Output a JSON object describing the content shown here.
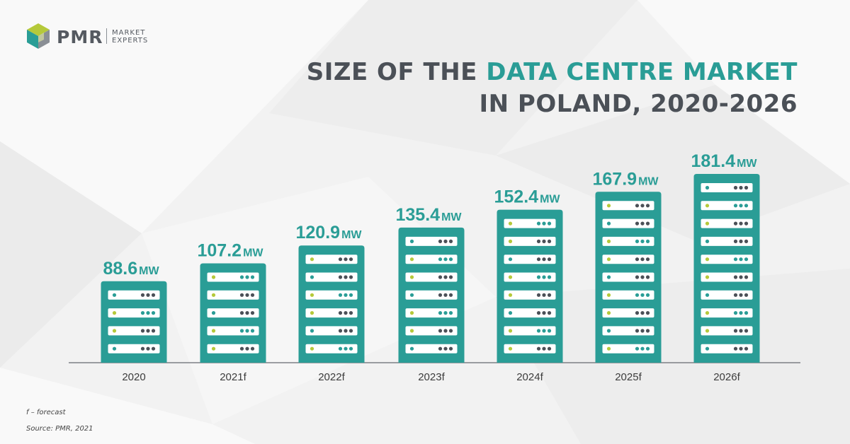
{
  "brand": {
    "name": "PMR",
    "tagline_line1": "MARKET",
    "tagline_line2": "EXPERTS",
    "colors": {
      "teal": "#2a9d96",
      "dark": "#4b5057",
      "green": "#b5c93a"
    }
  },
  "title": {
    "line1_plain": "SIZE OF THE ",
    "line1_highlight": "DATA CENTRE MARKET",
    "line2": "IN POLAND, 2020-2026"
  },
  "chart_data": {
    "type": "bar",
    "categories": [
      "2020",
      "2021f",
      "2022f",
      "2023f",
      "2024f",
      "2025f",
      "2026f"
    ],
    "values": [
      88.6,
      107.2,
      120.9,
      135.4,
      152.4,
      167.9,
      181.4
    ],
    "value_labels": [
      "88.6",
      "107.2",
      "120.9",
      "135.4",
      "152.4",
      "167.9",
      "181.4"
    ],
    "unit": "MW",
    "server_units_per_bar": [
      4,
      5,
      6,
      7,
      8,
      9,
      10
    ],
    "bar_color": "#2a9d96"
  },
  "footnotes": {
    "forecast_note": "f – forecast",
    "source": "Source: PMR, 2021"
  }
}
